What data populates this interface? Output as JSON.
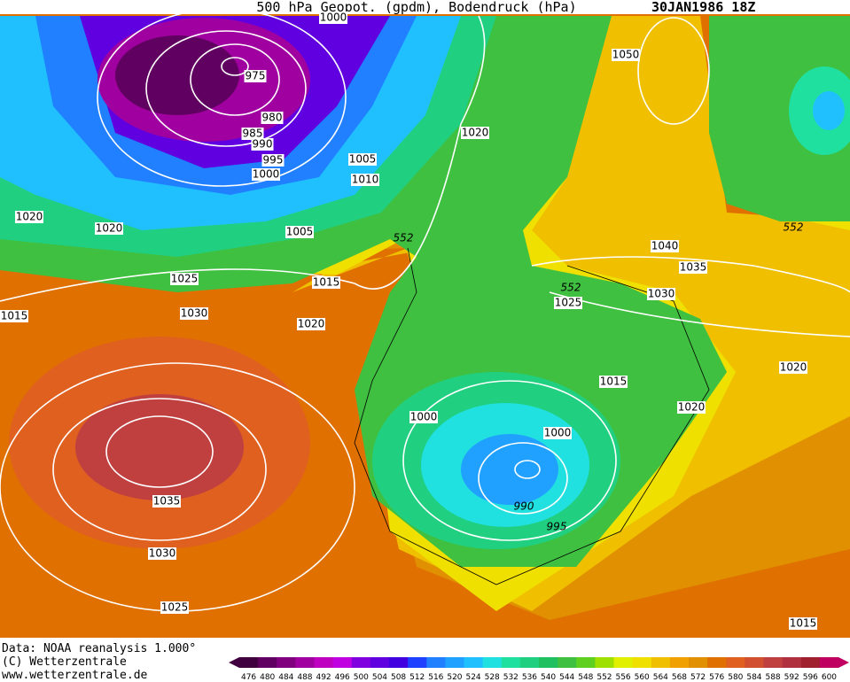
{
  "header": {
    "title": "500 hPa Geopot. (gpdm), Bodendruck (hPa)",
    "date": "30JAN1986 18Z"
  },
  "contour_labels": [
    "1000",
    "975",
    "980",
    "985",
    "990",
    "995",
    "1000",
    "1005",
    "1010",
    "1005",
    "1020",
    "1020",
    "1020",
    "1025",
    "1015",
    "1015",
    "1030",
    "1020",
    "1035",
    "1030",
    "1025",
    "1050",
    "552",
    "1040",
    "1035",
    "552",
    "1030",
    "1025",
    "552",
    "1020",
    "1015",
    "1020",
    "1000",
    "1000",
    "990",
    "995",
    "1015"
  ],
  "footer": [
    "Data: NOAA reanalysis 1.000°",
    "(C) Wetterzentrale",
    "www.wetterzentrale.de"
  ],
  "colorbar": {
    "labels": [
      "476",
      "480",
      "484",
      "488",
      "492",
      "496",
      "500",
      "504",
      "508",
      "512",
      "516",
      "520",
      "524",
      "528",
      "532",
      "536",
      "540",
      "544",
      "548",
      "552",
      "556",
      "560",
      "564",
      "568",
      "572",
      "576",
      "580",
      "584",
      "588",
      "592",
      "596",
      "600"
    ],
    "colors": [
      "#400040",
      "#600060",
      "#800080",
      "#a000a0",
      "#c000c0",
      "#c000e0",
      "#8000e0",
      "#6000e0",
      "#4000e0",
      "#2040ff",
      "#2080ff",
      "#20a0ff",
      "#20c0ff",
      "#20e0e0",
      "#20e0a0",
      "#20d080",
      "#20c060",
      "#40c040",
      "#60d020",
      "#a0e000",
      "#e0f000",
      "#f0e000",
      "#f0c000",
      "#f0a000",
      "#e09000",
      "#e07000",
      "#e06020",
      "#d05030",
      "#c04040",
      "#b03040",
      "#a02030",
      "#c00060"
    ]
  }
}
